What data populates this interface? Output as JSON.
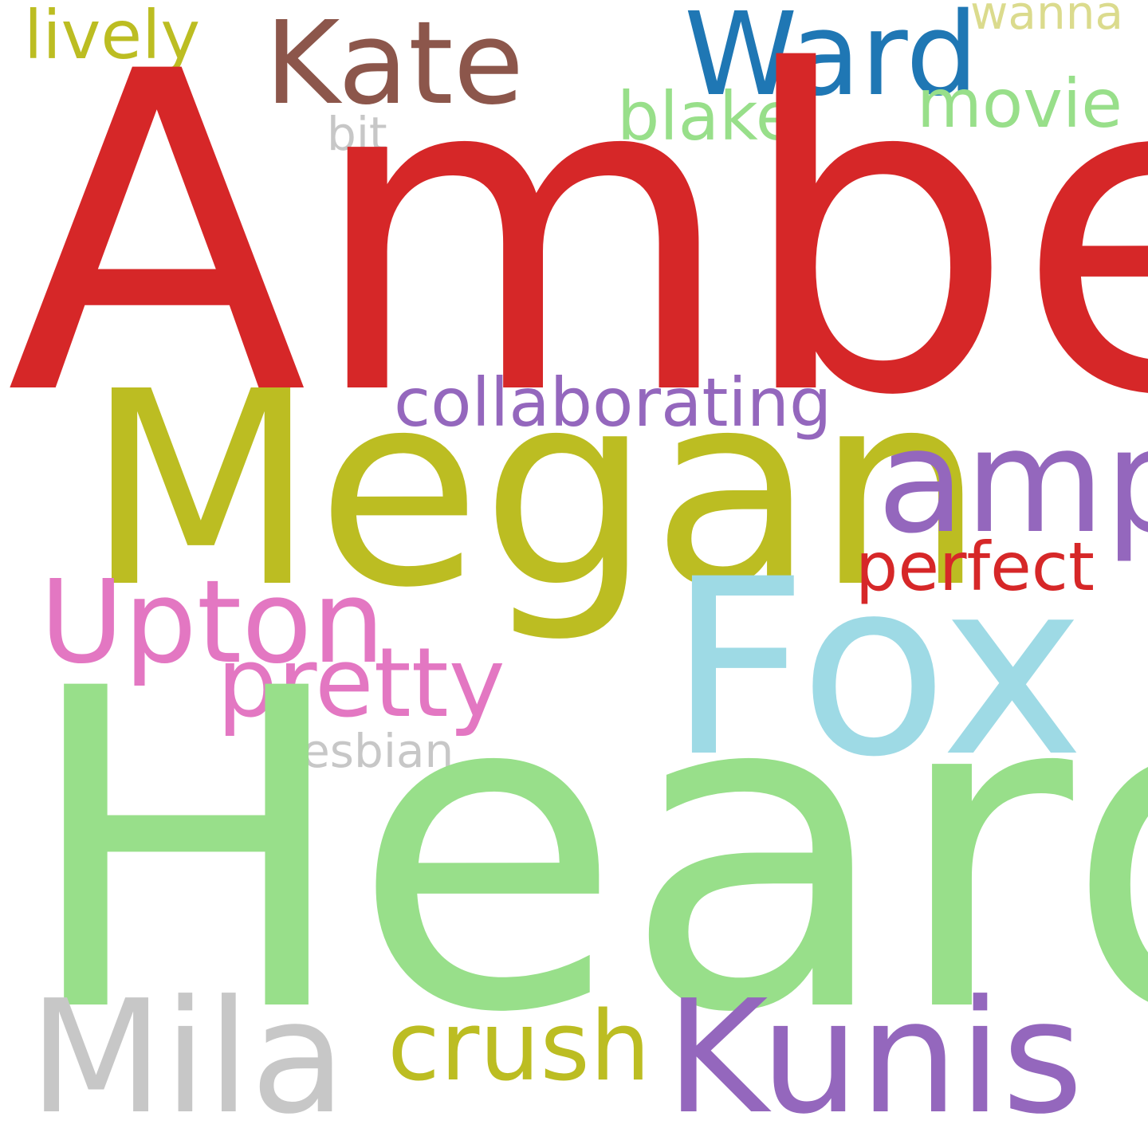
{
  "words": {
    "amber": {
      "text": "Amber",
      "color": "#d62728"
    },
    "heard": {
      "text": "Heard",
      "color": "#98df8a"
    },
    "megan": {
      "text": "Megan",
      "color": "#bcbd22"
    },
    "fox": {
      "text": "Fox",
      "color": "#9edae5"
    },
    "mila": {
      "text": "Mila",
      "color": "#c7c7c7"
    },
    "kunis": {
      "text": "Kunis",
      "color": "#9467bd"
    },
    "amp": {
      "text": "amp",
      "color": "#9467bd"
    },
    "upton": {
      "text": "Upton",
      "color": "#e377c2"
    },
    "kate": {
      "text": "Kate",
      "color": "#8c564b"
    },
    "ward": {
      "text": "Ward",
      "color": "#1f77b4"
    },
    "pretty": {
      "text": "pretty",
      "color": "#e377c2"
    },
    "crush": {
      "text": "crush",
      "color": "#bcbd22"
    },
    "collab": {
      "text": "collaborating",
      "color": "#9467bd"
    },
    "perfect": {
      "text": "perfect",
      "color": "#d62728"
    },
    "blake": {
      "text": "blake",
      "color": "#98df8a"
    },
    "movie": {
      "text": "movie",
      "color": "#98df8a"
    },
    "lively": {
      "text": "lively",
      "color": "#bcbd22"
    },
    "lesbian": {
      "text": "lesbian",
      "color": "#c7c7c7"
    },
    "bit": {
      "text": "bit",
      "color": "#c7c7c7"
    },
    "wanna": {
      "text": "wanna",
      "color": "#dbdb8d"
    }
  }
}
